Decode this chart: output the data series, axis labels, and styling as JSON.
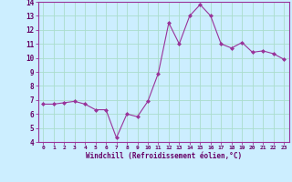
{
  "x": [
    0,
    1,
    2,
    3,
    4,
    5,
    6,
    7,
    8,
    9,
    10,
    11,
    12,
    13,
    14,
    15,
    16,
    17,
    18,
    19,
    20,
    21,
    22,
    23
  ],
  "y": [
    6.7,
    6.7,
    6.8,
    6.9,
    6.7,
    6.3,
    6.3,
    4.3,
    6.0,
    5.8,
    6.9,
    8.9,
    12.5,
    11.0,
    13.0,
    13.8,
    13.0,
    11.0,
    10.7,
    11.1,
    10.4,
    10.5,
    10.3,
    9.9
  ],
  "xlabel": "Windchill (Refroidissement éolien,°C)",
  "ylim": [
    4,
    14
  ],
  "xlim": [
    -0.5,
    23.5
  ],
  "yticks": [
    4,
    5,
    6,
    7,
    8,
    9,
    10,
    11,
    12,
    13,
    14
  ],
  "xticks": [
    0,
    1,
    2,
    3,
    4,
    5,
    6,
    7,
    8,
    9,
    10,
    11,
    12,
    13,
    14,
    15,
    16,
    17,
    18,
    19,
    20,
    21,
    22,
    23
  ],
  "line_color": "#993399",
  "marker_color": "#993399",
  "bg_color": "#cceeff",
  "grid_color": "#aaddcc",
  "tick_label_color": "#660066",
  "xlabel_color": "#660066",
  "border_color": "#993399"
}
